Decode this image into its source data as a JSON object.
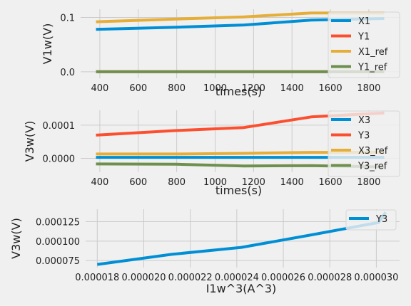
{
  "chart_data": [
    {
      "type": "line",
      "title": "",
      "xlabel": "times(s)",
      "ylabel": "V1w(V)",
      "xlim": [
        300,
        1960
      ],
      "ylim": [
        -0.012,
        0.115
      ],
      "xticks": [
        400,
        600,
        800,
        1000,
        1200,
        1400,
        1600,
        1800
      ],
      "xtick_labels": [
        "400",
        "600",
        "800",
        "1000",
        "1200",
        "1400",
        "1600",
        "1800"
      ],
      "yticks": [
        0.0,
        0.1
      ],
      "ytick_labels": [
        "0.0",
        "0.1"
      ],
      "grid": true,
      "legend_loc": "right",
      "series": [
        {
          "name": "X1",
          "color": "#008fd5",
          "x": [
            380,
            800,
            1150,
            1500,
            1880
          ],
          "y": [
            0.078,
            0.082,
            0.086,
            0.095,
            0.098
          ]
        },
        {
          "name": "Y1",
          "color": "#fc4f30",
          "x": [
            380,
            800,
            1150,
            1500,
            1880
          ],
          "y": [
            0.0002,
            0.0002,
            0.0002,
            0.0002,
            0.0002
          ]
        },
        {
          "name": "X1_ref",
          "color": "#e5ae38",
          "x": [
            380,
            800,
            1150,
            1500,
            1880
          ],
          "y": [
            0.092,
            0.097,
            0.101,
            0.108,
            0.108
          ]
        },
        {
          "name": "Y1_ref",
          "color": "#6d904f",
          "x": [
            380,
            800,
            1150,
            1500,
            1880
          ],
          "y": [
            0.0,
            0.0,
            0.0,
            0.0,
            0.0
          ]
        }
      ]
    },
    {
      "type": "line",
      "title": "",
      "xlabel": "times(s)",
      "ylabel": "V3w(V)",
      "xlim": [
        300,
        1960
      ],
      "ylim": [
        -4.2e-05,
        0.000145
      ],
      "xticks": [
        400,
        600,
        800,
        1000,
        1200,
        1400,
        1600,
        1800
      ],
      "xtick_labels": [
        "400",
        "600",
        "800",
        "1000",
        "1200",
        "1400",
        "1600",
        "1800"
      ],
      "yticks": [
        0.0,
        0.0001
      ],
      "ytick_labels": [
        "0.0000",
        "0.0001"
      ],
      "grid": true,
      "legend_loc": "right",
      "series": [
        {
          "name": "X3",
          "color": "#008fd5",
          "x": [
            380,
            800,
            1150,
            1500,
            1880
          ],
          "y": [
            3e-06,
            3e-06,
            3e-06,
            3e-06,
            3e-06
          ]
        },
        {
          "name": "Y3",
          "color": "#fc4f30",
          "x": [
            380,
            800,
            1150,
            1500,
            1880
          ],
          "y": [
            7e-05,
            8.4e-05,
            9.3e-05,
            0.000125,
            0.000137
          ]
        },
        {
          "name": "X3_ref",
          "color": "#e5ae38",
          "x": [
            380,
            800,
            1150,
            1500,
            1880
          ],
          "y": [
            1.3e-05,
            1.3e-05,
            1.5e-05,
            1.8e-05,
            1.8e-05
          ]
        },
        {
          "name": "Y3_ref",
          "color": "#6d904f",
          "x": [
            380,
            800,
            1150,
            1500,
            1880
          ],
          "y": [
            -1.7e-05,
            -1.8e-05,
            -2.3e-05,
            -2.2e-05,
            -2.6e-05
          ]
        }
      ]
    },
    {
      "type": "line",
      "title": "",
      "xlabel": "I1w^3(A^3)",
      "ylabel": "V3w(V)",
      "xlim": [
        1.75e-05,
        3.1e-05
      ],
      "ylim": [
        6.6e-05,
        0.000141
      ],
      "xticks": [
        1.8e-05,
        2e-05,
        2.2e-05,
        2.4e-05,
        2.6e-05,
        2.8e-05,
        3e-05
      ],
      "xtick_labels": [
        "0.000018",
        "0.000020",
        "0.000022",
        "0.000024",
        "0.000026",
        "0.000028",
        "0.000030"
      ],
      "yticks": [
        7.5e-05,
        0.0001,
        0.000125
      ],
      "ytick_labels": [
        "0.000075",
        "0.000100",
        "0.000125"
      ],
      "grid": true,
      "legend_loc": "upper right",
      "series": [
        {
          "name": "Y3",
          "color": "#008fd5",
          "x": [
            1.8e-05,
            2.12e-05,
            2.42e-05,
            2.72e-05,
            3.01e-05,
            3.04e-05
          ],
          "y": [
            7e-05,
            8.3e-05,
            9.2e-05,
            0.000108,
            0.000124,
            0.000137
          ]
        }
      ]
    }
  ]
}
